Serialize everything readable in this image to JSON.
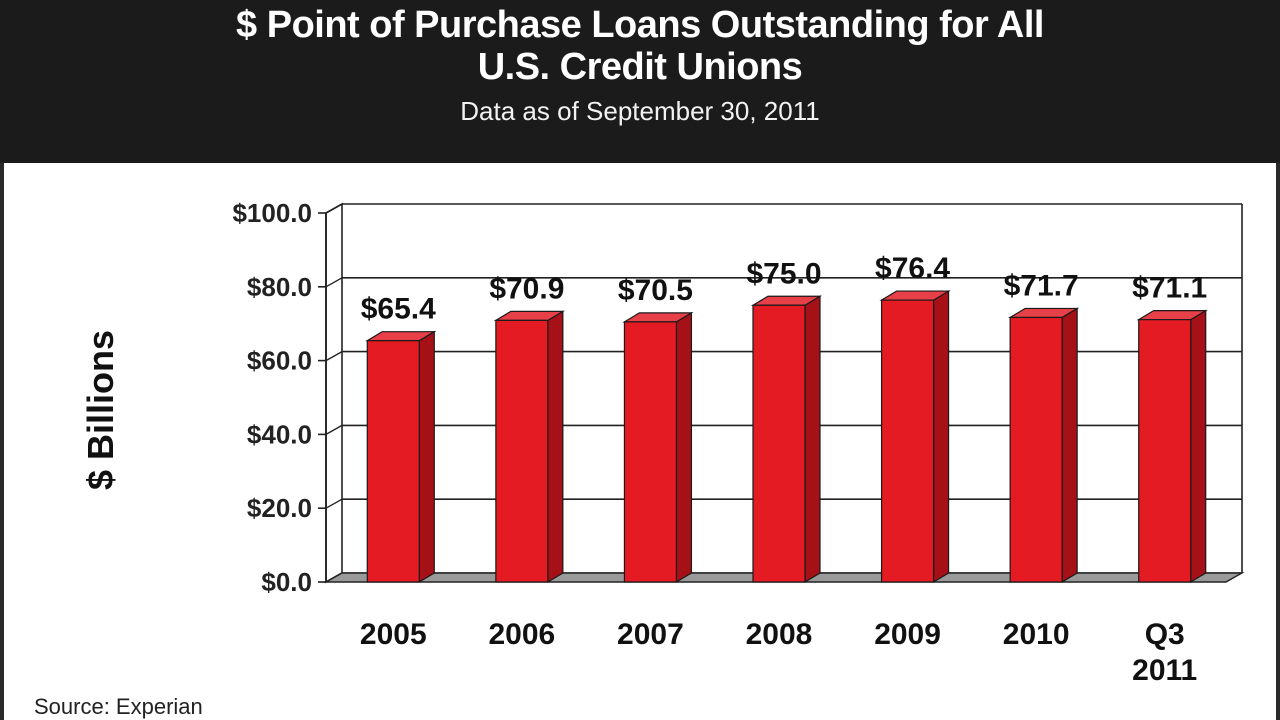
{
  "header": {
    "title_line1": "$ Point of Purchase Loans Outstanding for All",
    "title_line2": "U.S. Credit Unions",
    "subtitle": "Data as of September 30, 2011"
  },
  "source": "Source: Experian",
  "colors": {
    "header_bg": "#1b1b1b",
    "bar_front": "#e41b23",
    "bar_side": "#a51117",
    "bar_top": "#e84048"
  },
  "chart_data": {
    "type": "bar",
    "title": "$ Point of Purchase Loans Outstanding for All U.S. Credit Unions",
    "subtitle": "Data as of September 30, 2011",
    "ylabel": "$ Billions",
    "xlabel": "",
    "ylim": [
      0,
      100
    ],
    "yticks": [
      0,
      20,
      40,
      60,
      80,
      100
    ],
    "ytick_labels": [
      "$0.0",
      "$20.0",
      "$40.0",
      "$60.0",
      "$80.0",
      "$100.0"
    ],
    "categories": [
      [
        "2005"
      ],
      [
        "2006"
      ],
      [
        "2007"
      ],
      [
        "2008"
      ],
      [
        "2009"
      ],
      [
        "2010"
      ],
      [
        "Q3",
        "2011"
      ]
    ],
    "values": [
      65.4,
      70.9,
      70.5,
      75.0,
      76.4,
      71.7,
      71.1
    ],
    "value_labels": [
      "$65.4",
      "$70.9",
      "$70.5",
      "$75.0",
      "$76.4",
      "$71.7",
      "$71.1"
    ],
    "grid": true,
    "legend": "none",
    "style": "3d"
  }
}
